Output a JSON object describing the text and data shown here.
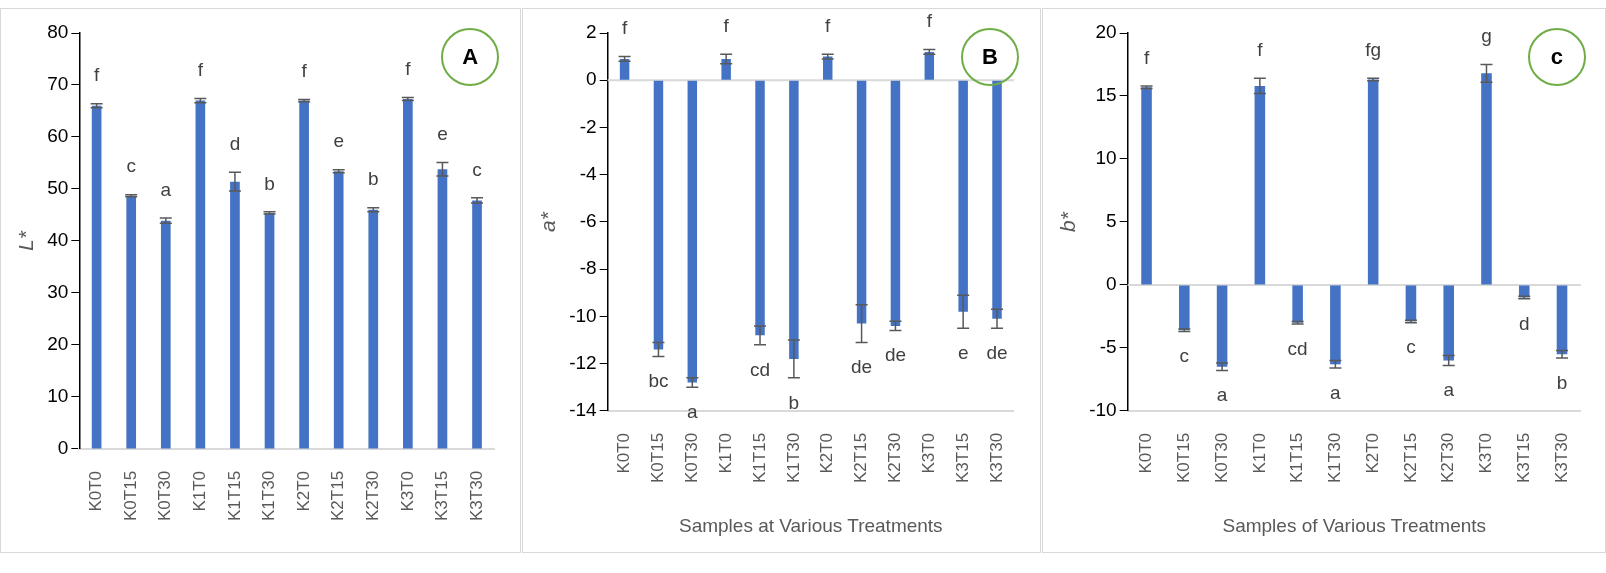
{
  "chart_data": [
    {
      "type": "bar",
      "ylabel": "L*",
      "categories": [
        "K0T0",
        "K0T15",
        "K0T30",
        "K1T0",
        "K1T15",
        "K1T30",
        "K2T0",
        "K2T15",
        "K2T30",
        "K3T0",
        "K3T15",
        "K3T30"
      ],
      "color": "#4472c4",
      "values": [
        66.0,
        48.7,
        43.9,
        67.0,
        51.4,
        45.4,
        67.0,
        53.4,
        46.0,
        67.3,
        53.8,
        47.8
      ],
      "errors": [
        0.4,
        0.2,
        0.5,
        0.4,
        1.8,
        0.2,
        0.2,
        0.3,
        0.4,
        0.3,
        1.3,
        0.5
      ],
      "value_labels": [
        "f",
        "c",
        "a",
        "f",
        "d",
        "b",
        "f",
        "e",
        "b",
        "f",
        "e",
        "c"
      ],
      "ylim": [
        0,
        80
      ],
      "yticks": [
        0,
        10,
        20,
        30,
        40,
        50,
        60,
        70,
        80
      ],
      "grid": false,
      "legend": false,
      "annotations": [
        "A"
      ]
    },
    {
      "type": "bar",
      "ylabel": "a*",
      "xlabel": "Samples at Various Treatments",
      "categories": [
        "K0T0",
        "K0T15",
        "K0T30",
        "K1T0",
        "K1T15",
        "K1T30",
        "K2T0",
        "K2T15",
        "K2T30",
        "K3T0",
        "K3T15",
        "K3T30"
      ],
      "color": "#4472c4",
      "values": [
        0.9,
        -11.4,
        -12.8,
        0.9,
        -10.8,
        -11.8,
        1.0,
        -10.3,
        -10.4,
        1.2,
        -9.8,
        -10.1
      ],
      "errors": [
        0.1,
        0.3,
        0.2,
        0.2,
        0.4,
        0.8,
        0.1,
        0.8,
        0.2,
        0.1,
        0.7,
        0.4
      ],
      "value_labels": [
        "f",
        "bc",
        "a",
        "f",
        "cd",
        "b",
        "f",
        "de",
        "de",
        "f",
        "e",
        "de"
      ],
      "ylim": [
        -14,
        2
      ],
      "yticks": [
        -14,
        -12,
        -10,
        -8,
        -6,
        -4,
        -2,
        0,
        2
      ],
      "ref_lines": [
        {
          "axis": "y",
          "value": 0,
          "color": "#d9d9d9"
        }
      ],
      "grid": false,
      "legend": false,
      "annotations": [
        "B"
      ]
    },
    {
      "type": "bar",
      "ylabel": "b*",
      "xlabel": "Samples of Various Treatments",
      "categories": [
        "K0T0",
        "K0T15",
        "K0T30",
        "K1T0",
        "K1T15",
        "K1T30",
        "K2T0",
        "K2T15",
        "K2T30",
        "K3T0",
        "K3T15",
        "K3T30"
      ],
      "color": "#4472c4",
      "values": [
        15.7,
        -3.6,
        -6.5,
        15.8,
        -3.0,
        -6.3,
        16.3,
        -2.9,
        -6.0,
        16.8,
        -1.0,
        -5.5
      ],
      "errors": [
        0.1,
        0.1,
        0.3,
        0.6,
        0.1,
        0.3,
        0.1,
        0.1,
        0.4,
        0.7,
        0.1,
        0.3
      ],
      "value_labels": [
        "f",
        "c",
        "a",
        "f",
        "cd",
        "a",
        "fg",
        "c",
        "a",
        "g",
        "d",
        "b"
      ],
      "ylim": [
        -10,
        20
      ],
      "yticks": [
        -10,
        -5,
        0,
        5,
        10,
        15,
        20
      ],
      "ref_lines": [
        {
          "axis": "y",
          "value": 0,
          "color": "#d9d9d9"
        }
      ],
      "grid": false,
      "legend": false,
      "annotations": [
        "c"
      ]
    }
  ]
}
